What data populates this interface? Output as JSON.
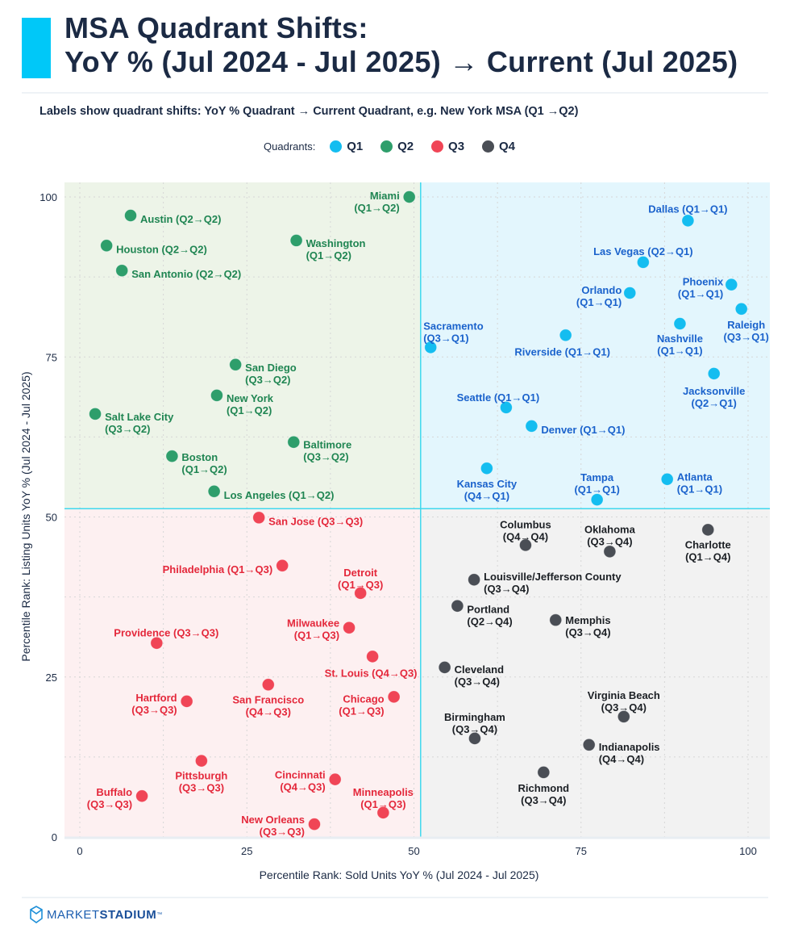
{
  "header": {
    "title_line1": "MSA Quadrant Shifts:",
    "title_line2": "YoY % (Jul 2024 - Jul 2025) → Current (Jul 2025)",
    "subtitle": "Labels show quadrant shifts: YoY % Quadrant → Current Quadrant, e.g. New York MSA (Q1 →Q2)"
  },
  "legend": {
    "label": "Quadrants:",
    "items": [
      {
        "label": "Q1",
        "color": "#14bdf0"
      },
      {
        "label": "Q2",
        "color": "#2e9e6b"
      },
      {
        "label": "Q3",
        "color": "#f04556"
      },
      {
        "label": "Q4",
        "color": "#4a4e55"
      }
    ]
  },
  "footer": {
    "brand_light": "MARKET",
    "brand_bold": "STADIUM",
    "trademark": "™"
  },
  "chart_data": {
    "type": "scatter",
    "xlabel": "Percentile Rank: Sold Units YoY % (Jul 2024 - Jul 2025)",
    "ylabel": "Percentile Rank: Listing Units YoY % (Jul 2024 - Jul 2025)",
    "xlim": [
      0,
      100
    ],
    "ylim": [
      0,
      100
    ],
    "xticks": [
      "0",
      "25",
      "50",
      "75",
      "100"
    ],
    "yticks": [
      "0",
      "25",
      "50",
      "75",
      "100"
    ],
    "divider": {
      "x": 51,
      "y": 51.3
    },
    "grid": true,
    "quadrant_colors": {
      "Q1": "#14bdf0",
      "Q2": "#2e9e6b",
      "Q3": "#f04556",
      "Q4": "#4a4e55"
    },
    "label_colors": {
      "Q1": "#1a62cc",
      "Q2": "#1f8552",
      "Q3": "#e4283b",
      "Q4": "#1b1f24"
    },
    "background_colors": {
      "Q1": "#e3f6fd",
      "Q2": "#edf4e8",
      "Q3": "#fdf0f1",
      "Q4": "#f2f2f2"
    },
    "points": [
      {
        "name": "Miami",
        "shift": "Q1→Q2",
        "q": "Q2",
        "x": 49.3,
        "y": 100
      },
      {
        "name": "Austin",
        "shift": "Q2→Q2",
        "q": "Q2",
        "x": 7.6,
        "y": 97.1
      },
      {
        "name": "Houston",
        "shift": "Q2→Q2",
        "q": "Q2",
        "x": 4.0,
        "y": 92.4
      },
      {
        "name": "San Antonio",
        "shift": "Q2→Q2",
        "q": "Q2",
        "x": 6.3,
        "y": 88.5
      },
      {
        "name": "Washington",
        "shift": "Q1→Q2",
        "q": "Q2",
        "x": 32.4,
        "y": 93.2
      },
      {
        "name": "San Diego",
        "shift": "Q3→Q2",
        "q": "Q2",
        "x": 23.3,
        "y": 73.8
      },
      {
        "name": "New York",
        "shift": "Q1→Q2",
        "q": "Q2",
        "x": 20.5,
        "y": 69.0
      },
      {
        "name": "Salt Lake City",
        "shift": "Q3→Q2",
        "q": "Q2",
        "x": 2.3,
        "y": 66.1
      },
      {
        "name": "Baltimore",
        "shift": "Q3→Q2",
        "q": "Q2",
        "x": 32.0,
        "y": 61.7
      },
      {
        "name": "Boston",
        "shift": "Q1→Q2",
        "q": "Q2",
        "x": 13.8,
        "y": 59.5
      },
      {
        "name": "Los Angeles",
        "shift": "Q1→Q2",
        "q": "Q2",
        "x": 20.1,
        "y": 54.0
      },
      {
        "name": "Dallas",
        "shift": "Q1→Q1",
        "q": "Q1",
        "x": 91.0,
        "y": 96.3
      },
      {
        "name": "Las Vegas",
        "shift": "Q2→Q1",
        "q": "Q1",
        "x": 84.3,
        "y": 89.8
      },
      {
        "name": "Phoenix",
        "shift": "Q1→Q1",
        "q": "Q1",
        "x": 97.5,
        "y": 86.3
      },
      {
        "name": "Orlando",
        "shift": "Q1→Q1",
        "q": "Q1",
        "x": 82.3,
        "y": 85.0
      },
      {
        "name": "Raleigh",
        "shift": "Q3→Q1",
        "q": "Q1",
        "x": 99.0,
        "y": 82.5
      },
      {
        "name": "Nashville",
        "shift": "Q1→Q1",
        "q": "Q1",
        "x": 89.8,
        "y": 80.2
      },
      {
        "name": "Sacramento",
        "shift": "Q3→Q1",
        "q": "Q1",
        "x": 52.5,
        "y": 76.5
      },
      {
        "name": "Riverside",
        "shift": "Q1→Q1",
        "q": "Q1",
        "x": 72.7,
        "y": 78.4
      },
      {
        "name": "Jacksonville",
        "shift": "Q2→Q1",
        "q": "Q1",
        "x": 94.9,
        "y": 72.4
      },
      {
        "name": "Seattle",
        "shift": "Q1→Q1",
        "q": "Q1",
        "x": 63.8,
        "y": 67.1
      },
      {
        "name": "Denver",
        "shift": "Q1→Q1",
        "q": "Q1",
        "x": 67.6,
        "y": 64.2
      },
      {
        "name": "Kansas City",
        "shift": "Q4→Q1",
        "q": "Q1",
        "x": 60.9,
        "y": 57.6
      },
      {
        "name": "Atlanta",
        "shift": "Q1→Q1",
        "q": "Q1",
        "x": 87.9,
        "y": 55.9
      },
      {
        "name": "Tampa",
        "shift": "Q1→Q1",
        "q": "Q1",
        "x": 77.4,
        "y": 52.7
      },
      {
        "name": "San Jose",
        "shift": "Q3→Q3",
        "q": "Q3",
        "x": 26.8,
        "y": 49.9
      },
      {
        "name": "Philadelphia",
        "shift": "Q1→Q3",
        "q": "Q3",
        "x": 30.3,
        "y": 42.4
      },
      {
        "name": "Detroit",
        "shift": "Q1→Q3",
        "q": "Q3",
        "x": 42.0,
        "y": 38.1
      },
      {
        "name": "Milwaukee",
        "shift": "Q1→Q3",
        "q": "Q3",
        "x": 40.3,
        "y": 32.7
      },
      {
        "name": "Providence",
        "shift": "Q3→Q3",
        "q": "Q3",
        "x": 11.5,
        "y": 30.3
      },
      {
        "name": "St. Louis",
        "shift": "Q4→Q3",
        "q": "Q3",
        "x": 43.8,
        "y": 28.2
      },
      {
        "name": "San Francisco",
        "shift": "Q4→Q3",
        "q": "Q3",
        "x": 28.2,
        "y": 23.8
      },
      {
        "name": "Chicago",
        "shift": "Q1→Q3",
        "q": "Q3",
        "x": 47.0,
        "y": 21.9
      },
      {
        "name": "Hartford",
        "shift": "Q3→Q3",
        "q": "Q3",
        "x": 16.0,
        "y": 21.2
      },
      {
        "name": "Pittsburgh",
        "shift": "Q3→Q3",
        "q": "Q3",
        "x": 18.2,
        "y": 11.9
      },
      {
        "name": "Cincinnati",
        "shift": "Q4→Q3",
        "q": "Q3",
        "x": 38.2,
        "y": 9.0
      },
      {
        "name": "Buffalo",
        "shift": "Q3→Q3",
        "q": "Q3",
        "x": 9.3,
        "y": 6.4
      },
      {
        "name": "Minneapolis",
        "shift": "Q1→Q3",
        "q": "Q3",
        "x": 45.4,
        "y": 3.8
      },
      {
        "name": "New Orleans",
        "shift": "Q3→Q3",
        "q": "Q3",
        "x": 35.1,
        "y": 2.0
      },
      {
        "name": "Columbus",
        "shift": "Q4→Q4",
        "q": "Q4",
        "x": 66.7,
        "y": 45.6
      },
      {
        "name": "Oklahoma",
        "shift": "Q3→Q4",
        "q": "Q4",
        "x": 79.3,
        "y": 44.6
      },
      {
        "name": "Charlotte",
        "shift": "Q1→Q4",
        "q": "Q4",
        "x": 94.0,
        "y": 48.0
      },
      {
        "name": "Louisville/Jefferson County",
        "shift": "Q3→Q4",
        "q": "Q4",
        "x": 59.0,
        "y": 40.2
      },
      {
        "name": "Portland",
        "shift": "Q2→Q4",
        "q": "Q4",
        "x": 56.5,
        "y": 36.1
      },
      {
        "name": "Memphis",
        "shift": "Q3→Q4",
        "q": "Q4",
        "x": 71.2,
        "y": 33.9
      },
      {
        "name": "Cleveland",
        "shift": "Q3→Q4",
        "q": "Q4",
        "x": 54.6,
        "y": 26.5
      },
      {
        "name": "Virginia Beach",
        "shift": "Q3→Q4",
        "q": "Q4",
        "x": 81.4,
        "y": 18.8
      },
      {
        "name": "Birmingham",
        "shift": "Q3→Q4",
        "q": "Q4",
        "x": 59.1,
        "y": 15.4
      },
      {
        "name": "Indianapolis",
        "shift": "Q4→Q4",
        "q": "Q4",
        "x": 76.2,
        "y": 14.4
      },
      {
        "name": "Richmond",
        "shift": "Q3→Q4",
        "q": "Q4",
        "x": 69.4,
        "y": 10.1
      }
    ]
  }
}
